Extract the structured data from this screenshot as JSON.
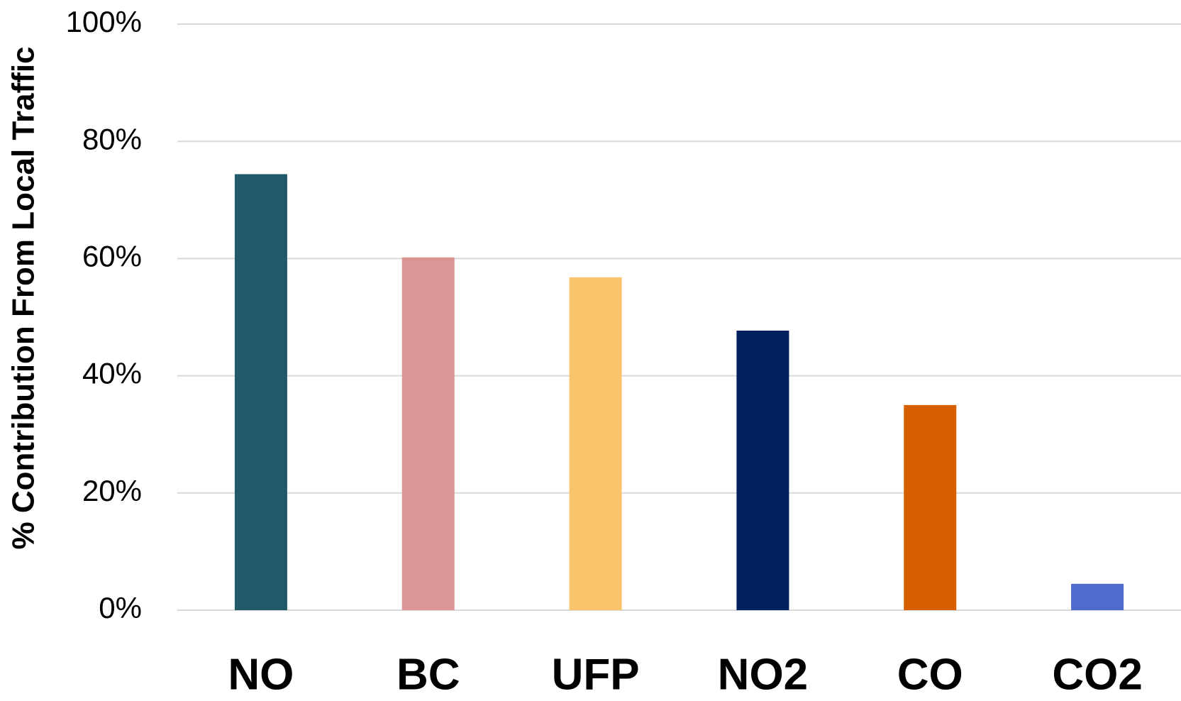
{
  "chart_data": {
    "type": "bar",
    "y_label": "% Contribution From Local Traffic",
    "categories": [
      "NO",
      "BC",
      "UFP",
      "NO2",
      "CO",
      "CO2"
    ],
    "values": [
      74.4,
      60.2,
      56.8,
      47.7,
      35.0,
      4.5
    ],
    "colors": [
      "#215968",
      "#da9694",
      "#fac46d",
      "#002060",
      "#d65f00",
      "#4f6bcb"
    ],
    "ylim": [
      0,
      100
    ],
    "yticks": [
      {
        "value": 0,
        "label": "0%"
      },
      {
        "value": 20,
        "label": "20%"
      },
      {
        "value": 40,
        "label": "40%"
      },
      {
        "value": 60,
        "label": "60%"
      },
      {
        "value": 80,
        "label": "80%"
      },
      {
        "value": 100,
        "label": "100%"
      }
    ],
    "grid": true
  }
}
